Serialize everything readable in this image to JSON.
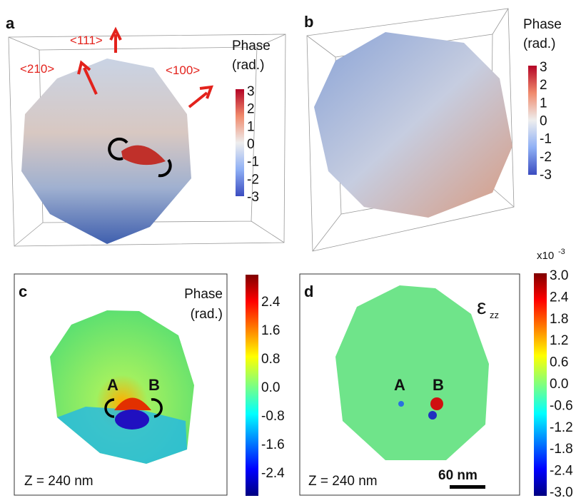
{
  "panels": {
    "a": {
      "label": "a",
      "directions": [
        "<111>",
        "<210>",
        "<100>"
      ],
      "colorbar_title": [
        "Phase",
        "(rad.)"
      ],
      "colorbar_ticks": [
        "3",
        "2",
        "1",
        "0",
        "-1",
        "-2",
        "-3"
      ]
    },
    "b": {
      "label": "b",
      "colorbar_title": [
        "Phase",
        "(rad.)"
      ],
      "colorbar_ticks": [
        "3",
        "2",
        "1",
        "0",
        "-1",
        "-2",
        "-3"
      ]
    },
    "c": {
      "label": "c",
      "colorbar_title": [
        "Phase",
        "(rad.)"
      ],
      "colorbar_ticks": [
        "2.4",
        "1.6",
        "0.8",
        "0.0",
        "-0.8",
        "-1.6",
        "-2.4"
      ],
      "points": [
        "A",
        "B"
      ],
      "depth": "Z = 240 nm"
    },
    "d": {
      "label": "d",
      "symbol": "ε",
      "subscript": "zz",
      "multiplier": "x10",
      "exponent": "-3",
      "colorbar_ticks": [
        "3.0",
        "2.4",
        "1.8",
        "1.2",
        "0.6",
        "0.0",
        "-0.6",
        "-1.2",
        "-1.8",
        "-2.4",
        "-3.0"
      ],
      "points": [
        "A",
        "B"
      ],
      "depth": "Z = 240 nm",
      "scale_bar": "60 nm"
    }
  }
}
